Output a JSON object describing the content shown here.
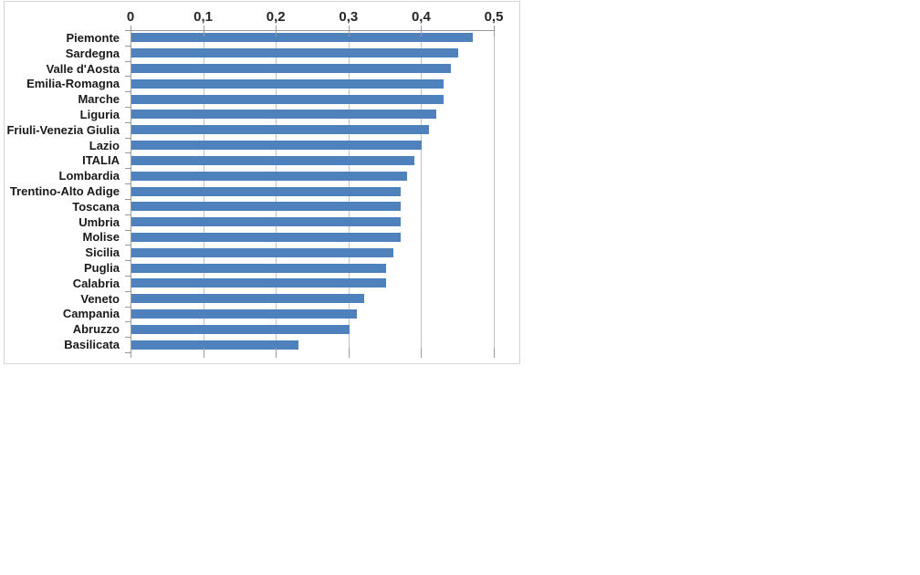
{
  "chart_data": {
    "type": "bar",
    "orientation": "horizontal",
    "title": "",
    "xlabel": "",
    "ylabel": "",
    "categories": [
      "Piemonte",
      "Sardegna",
      "Valle d'Aosta",
      "Emilia-Romagna",
      "Marche",
      "Liguria",
      "Friuli-Venezia Giulia",
      "Lazio",
      "ITALIA",
      "Lombardia",
      "Trentino-Alto Adige",
      "Toscana",
      "Umbria",
      "Molise",
      "Sicilia",
      "Puglia",
      "Calabria",
      "Veneto",
      "Campania",
      "Abruzzo",
      "Basilicata"
    ],
    "values": [
      0.47,
      0.45,
      0.44,
      0.43,
      0.43,
      0.42,
      0.41,
      0.4,
      0.39,
      0.38,
      0.37,
      0.37,
      0.37,
      0.37,
      0.36,
      0.35,
      0.35,
      0.32,
      0.31,
      0.3,
      0.23
    ],
    "xlim": [
      0,
      0.5
    ],
    "x_tick_values": [
      0,
      0.1,
      0.2,
      0.3,
      0.4,
      0.5
    ],
    "x_tick_labels": [
      "0",
      "0,1",
      "0,2",
      "0,3",
      "0,4",
      "0,5"
    ],
    "decimal_separator": ",",
    "grid": true,
    "legend": false,
    "axis_position": "top",
    "colors": {
      "bar": "#4F81BD",
      "gridline": "#C3C3C3",
      "axis": "#9A9A9A",
      "tick_label": "#262626",
      "category_label": "#1A1A1A",
      "frame_border": "#D5D5D5",
      "background": "#FFFFFF"
    }
  }
}
